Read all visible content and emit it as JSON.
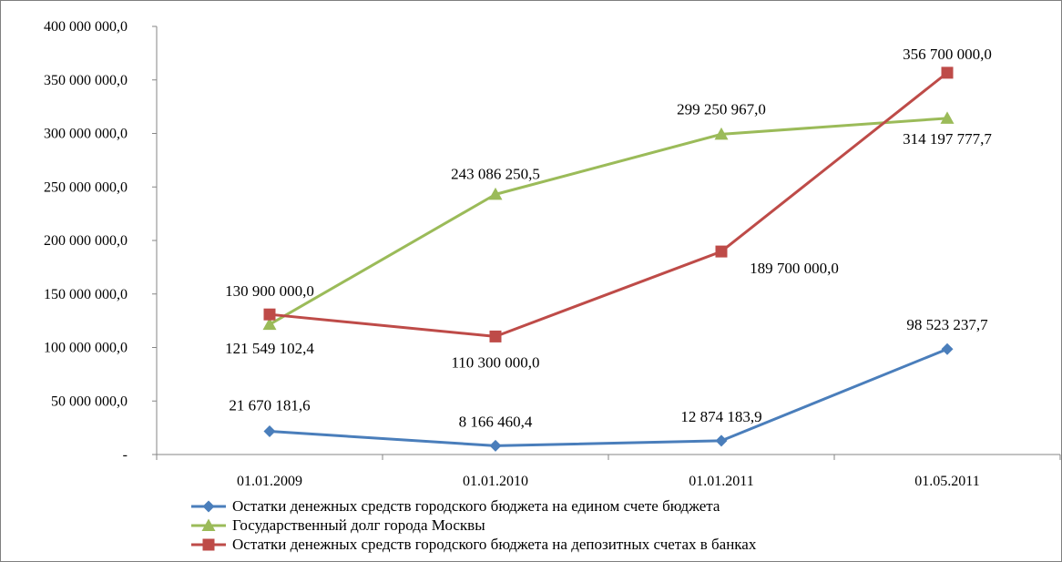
{
  "chart_data": {
    "type": "line",
    "categories": [
      "01.01.2009",
      "01.01.2010",
      "01.01.2011",
      "01.05.2011"
    ],
    "ylim": [
      0,
      400000000
    ],
    "yticks": [
      0,
      50000000,
      100000000,
      150000000,
      200000000,
      250000000,
      300000000,
      350000000,
      400000000
    ],
    "ytick_labels": [
      "-",
      "50 000 000,0",
      "100 000 000,0",
      "150 000 000,0",
      "200 000 000,0",
      "250 000 000,0",
      "300 000 000,0",
      "350 000 000,0",
      "400 000 000,0"
    ],
    "grid": false,
    "legend_position": "bottom",
    "series": [
      {
        "name": "Остатки денежных средств городского бюджета на едином счете бюджета",
        "color": "#4a7ebb",
        "marker": "diamond",
        "values": [
          21670181.6,
          8166460.4,
          12874183.9,
          98523237.7
        ],
        "labels": [
          "21 670 181,6",
          "8 166 460,4",
          "12 874 183,9",
          "98 523 237,7"
        ]
      },
      {
        "name": "Государственный долг города Москвы",
        "color": "#9bbb59",
        "marker": "triangle",
        "values": [
          121549102.4,
          243086250.5,
          299250967.0,
          314197777.7
        ],
        "labels": [
          "121 549 102,4",
          "243 086 250,5",
          "299 250 967,0",
          "314 197 777,7"
        ]
      },
      {
        "name": "Остатки денежных средств городского бюджета на депозитных счетах в банках",
        "color": "#be4b48",
        "marker": "square",
        "values": [
          130900000.0,
          110300000.0,
          189700000.0,
          356700000.0
        ],
        "labels": [
          "130 900 000,0",
          "110 300 000,0",
          "189 700 000,0",
          "356 700 000,0"
        ]
      }
    ]
  }
}
